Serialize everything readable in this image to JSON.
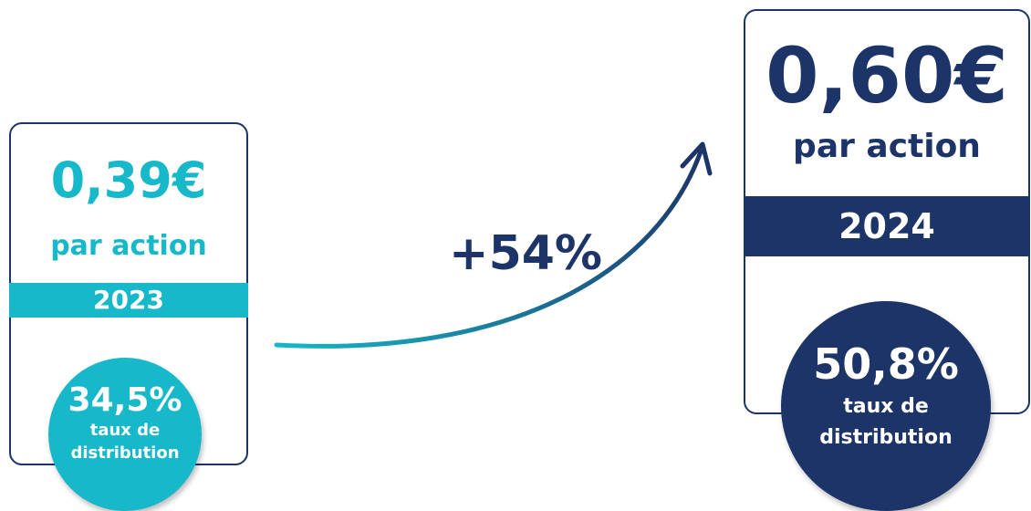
{
  "left": {
    "amount": "0,39€",
    "unit": "par action",
    "year": "2023",
    "rate": "34,5%",
    "rate_label_line1": "taux de",
    "rate_label_line2": "distribution",
    "color": "#17b8c9"
  },
  "right": {
    "amount": "0,60€",
    "unit": "par action",
    "year": "2024",
    "rate": "50,8%",
    "rate_label_line1": "taux de",
    "rate_label_line2": "distribution",
    "color": "#1c3468"
  },
  "growth": {
    "label": "+54%"
  }
}
